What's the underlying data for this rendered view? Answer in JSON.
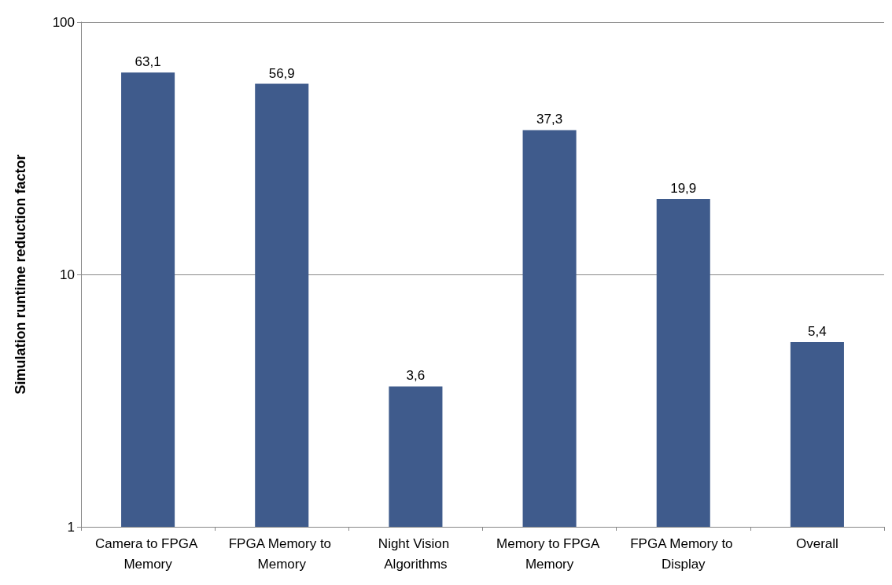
{
  "chart_data": {
    "type": "bar",
    "ylabel": "Simulation runtime reduction factor",
    "categories": [
      "Camera to FPGA Memory",
      "FPGA Memory to Memory",
      "Night Vision Algorithms",
      "Memory to FPGA Memory",
      "FPGA Memory to Display",
      "Overall"
    ],
    "values": [
      63.1,
      56.9,
      3.6,
      37.3,
      19.9,
      5.4
    ],
    "value_labels": [
      "63,1",
      "56,9",
      "3,6",
      "37,3",
      "19,9",
      "5,4"
    ],
    "color": "#3f5b8c",
    "log": "y",
    "ylim": [
      1,
      100
    ],
    "yticks": [
      1,
      10,
      100
    ],
    "grid": "y"
  }
}
